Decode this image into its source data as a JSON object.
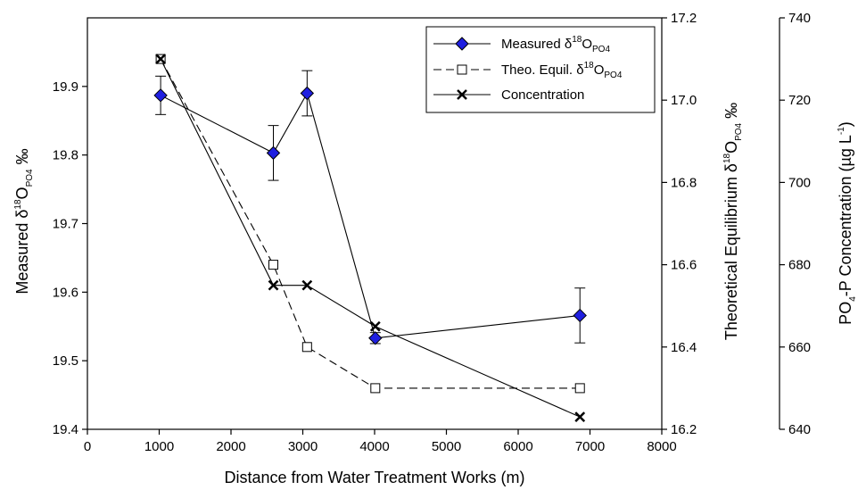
{
  "chart_data": {
    "type": "line",
    "xlabel": "Distance from Water Treatment Works (m)",
    "xlim": [
      0,
      8000
    ],
    "xticks": [
      "0",
      "1000",
      "2000",
      "3000",
      "4000",
      "5000",
      "6000",
      "7000",
      "8000"
    ],
    "axes": {
      "left": {
        "label_main": "Measured δ",
        "label_sup": "18",
        "label_O": "O",
        "label_sub": "PO4",
        "label_unit": " ‰",
        "ylim": [
          19.4,
          20.0
        ],
        "ticks": [
          "19.4",
          "19.5",
          "19.6",
          "19.7",
          "19.8",
          "19.9"
        ]
      },
      "right": {
        "label_main": "Theoretical Equilibrium δ",
        "label_sup": "18",
        "label_O": "O",
        "label_sub": "PO4",
        "label_unit": " ‰",
        "ylim": [
          16.2,
          17.2
        ],
        "ticks": [
          "16.2",
          "16.4",
          "16.6",
          "16.8",
          "17.0",
          "17.2"
        ]
      },
      "far_right": {
        "label_a": "PO",
        "label_a_sub": "4",
        "label_b": "-P Concentration (µg L",
        "label_b_sup": "-1",
        "label_c": ")",
        "ylim": [
          640,
          740
        ],
        "ticks": [
          "640",
          "660",
          "680",
          "700",
          "720",
          "740"
        ]
      }
    },
    "series": [
      {
        "name": "Measured δ18OPO4",
        "axis": "left",
        "marker": "diamond",
        "color": "#1f1fe0",
        "line": "solid",
        "x": [
          1020,
          2590,
          3060,
          4010,
          6860
        ],
        "y": [
          19.887,
          19.803,
          19.89,
          19.533,
          19.566
        ],
        "err": [
          0.028,
          0.04,
          0.033,
          0.008,
          0.04
        ]
      },
      {
        "name": "Theo. Equil. δ18OPO4",
        "axis": "right",
        "marker": "square-open",
        "line": "dashed",
        "x": [
          1020,
          2590,
          3060,
          4010,
          6860
        ],
        "y": [
          17.1,
          16.6,
          16.4,
          16.3,
          16.3
        ]
      },
      {
        "name": "Concentration",
        "axis": "far_right",
        "marker": "x",
        "line": "solid",
        "x": [
          1020,
          2590,
          3060,
          4010,
          6860
        ],
        "y": [
          730,
          675,
          675,
          665,
          643
        ]
      }
    ],
    "legend": {
      "position": "top-right",
      "items": [
        {
          "main": "Measured δ",
          "sup": "18",
          "o": "O",
          "sub": "PO4"
        },
        {
          "main": "Theo. Equil. δ",
          "sup": "18",
          "o": "O",
          "sub": "PO4"
        },
        {
          "main": "Concentration",
          "sup": "",
          "o": "",
          "sub": ""
        }
      ]
    },
    "grid": false
  }
}
